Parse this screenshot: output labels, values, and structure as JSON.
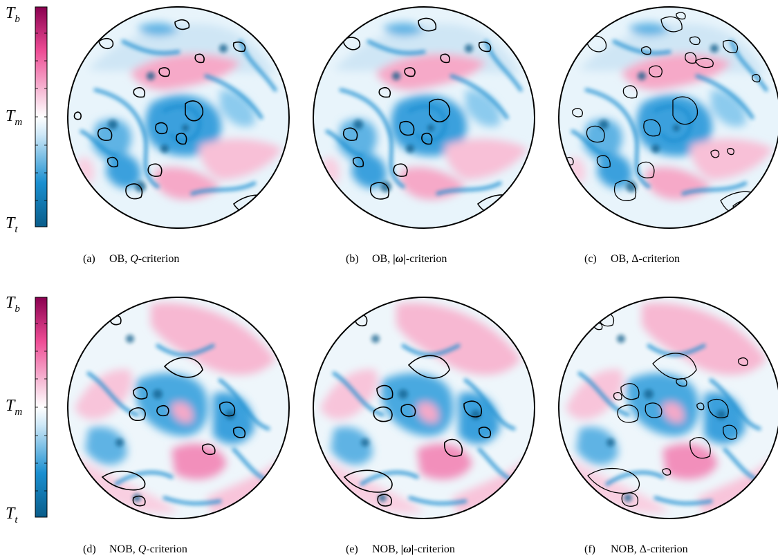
{
  "colorbar_labels": {
    "top": "T",
    "top_sub": "b",
    "middle": "T",
    "middle_sub": "m",
    "bottom": "T",
    "bottom_sub": "t"
  },
  "colormap": {
    "low": "#0a5d8a",
    "mid_low": "#1a8fd0",
    "mid": "#ffffff",
    "mid_high": "#f06fa8",
    "high": "#8a0050"
  },
  "panels": [
    {
      "id": "a",
      "tag": "(a)",
      "case": "OB",
      "criterion": "Q",
      "suffix": "-criterion",
      "criterion_style": "italic"
    },
    {
      "id": "b",
      "tag": "(b)",
      "case": "OB",
      "criterion": "|ω|",
      "suffix": "-criterion",
      "criterion_style": "bold-italic"
    },
    {
      "id": "c",
      "tag": "(c)",
      "case": "OB",
      "criterion": "Δ",
      "suffix": "-criterion",
      "criterion_style": "upright"
    },
    {
      "id": "d",
      "tag": "(d)",
      "case": "NOB",
      "criterion": "Q",
      "suffix": "-criterion",
      "criterion_style": "italic"
    },
    {
      "id": "e",
      "tag": "(e)",
      "case": "NOB",
      "criterion": "|ω|",
      "suffix": "-criterion",
      "criterion_style": "bold-italic"
    },
    {
      "id": "f",
      "tag": "(f)",
      "case": "NOB",
      "criterion": "Δ",
      "suffix": "-criterion",
      "criterion_style": "upright"
    }
  ]
}
